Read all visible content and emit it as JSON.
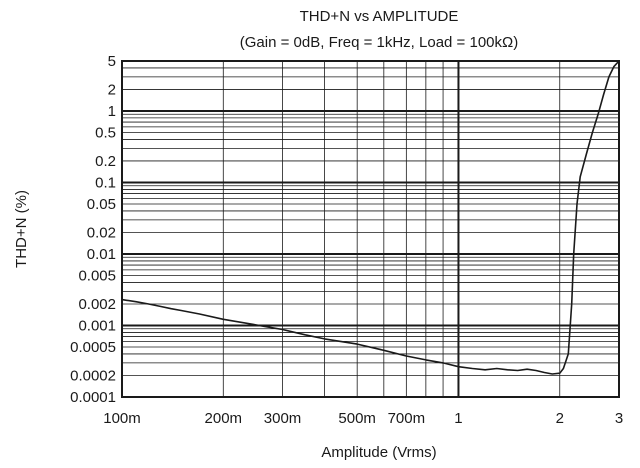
{
  "chart_data": {
    "type": "line",
    "title": "THD+N vs AMPLITUDE",
    "subtitle": "(Gain = 0dB, Freq = 1kHz, Load = 100kΩ)",
    "xlabel": "Amplitude (Vrms)",
    "ylabel": "THD+N (%)",
    "x_scale": "log",
    "y_scale": "log",
    "xlim": [
      0.1,
      3
    ],
    "ylim": [
      0.0001,
      5
    ],
    "grid": true,
    "x_ticks": [
      {
        "value": 0.1,
        "label": "100m"
      },
      {
        "value": 0.2,
        "label": "200m"
      },
      {
        "value": 0.3,
        "label": "300m"
      },
      {
        "value": 0.5,
        "label": "500m"
      },
      {
        "value": 0.7,
        "label": "700m"
      },
      {
        "value": 1,
        "label": "1"
      },
      {
        "value": 2,
        "label": "2"
      },
      {
        "value": 3,
        "label": "3"
      }
    ],
    "y_ticks": [
      {
        "value": 5,
        "label": "5"
      },
      {
        "value": 2,
        "label": "2"
      },
      {
        "value": 1,
        "label": "1"
      },
      {
        "value": 0.5,
        "label": "0.5"
      },
      {
        "value": 0.2,
        "label": "0.2"
      },
      {
        "value": 0.1,
        "label": "0.1"
      },
      {
        "value": 0.05,
        "label": "0.05"
      },
      {
        "value": 0.02,
        "label": "0.02"
      },
      {
        "value": 0.01,
        "label": "0.01"
      },
      {
        "value": 0.005,
        "label": "0.005"
      },
      {
        "value": 0.002,
        "label": "0.002"
      },
      {
        "value": 0.001,
        "label": "0.001"
      },
      {
        "value": 0.0005,
        "label": "0.0005"
      },
      {
        "value": 0.0002,
        "label": "0.0002"
      },
      {
        "value": 0.0001,
        "label": "0.0001"
      }
    ],
    "series": [
      {
        "points": [
          [
            0.1,
            0.0023
          ],
          [
            0.11,
            0.00215
          ],
          [
            0.12,
            0.002
          ],
          [
            0.13,
            0.00185
          ],
          [
            0.14,
            0.00172
          ],
          [
            0.15,
            0.00162
          ],
          [
            0.17,
            0.00145
          ],
          [
            0.2,
            0.00122
          ],
          [
            0.25,
            0.00102
          ],
          [
            0.3,
            0.00088
          ],
          [
            0.35,
            0.00074
          ],
          [
            0.4,
            0.00065
          ],
          [
            0.5,
            0.00055
          ],
          [
            0.6,
            0.00045
          ],
          [
            0.7,
            0.000375
          ],
          [
            0.8,
            0.00033
          ],
          [
            0.9,
            0.0003
          ],
          [
            1.0,
            0.000265
          ],
          [
            1.1,
            0.00025
          ],
          [
            1.2,
            0.00024
          ],
          [
            1.3,
            0.00025
          ],
          [
            1.4,
            0.00024
          ],
          [
            1.5,
            0.000235
          ],
          [
            1.6,
            0.000245
          ],
          [
            1.7,
            0.000235
          ],
          [
            1.8,
            0.00022
          ],
          [
            1.9,
            0.00021
          ],
          [
            2.0,
            0.000215
          ],
          [
            2.05,
            0.00025
          ],
          [
            2.12,
            0.0004
          ],
          [
            2.17,
            0.002
          ],
          [
            2.2,
            0.01
          ],
          [
            2.25,
            0.05
          ],
          [
            2.3,
            0.12
          ],
          [
            2.4,
            0.25
          ],
          [
            2.5,
            0.5
          ],
          [
            2.6,
            0.9
          ],
          [
            2.7,
            1.7
          ],
          [
            2.8,
            3.0
          ],
          [
            2.9,
            4.2
          ],
          [
            3.0,
            5.0
          ]
        ]
      }
    ]
  }
}
